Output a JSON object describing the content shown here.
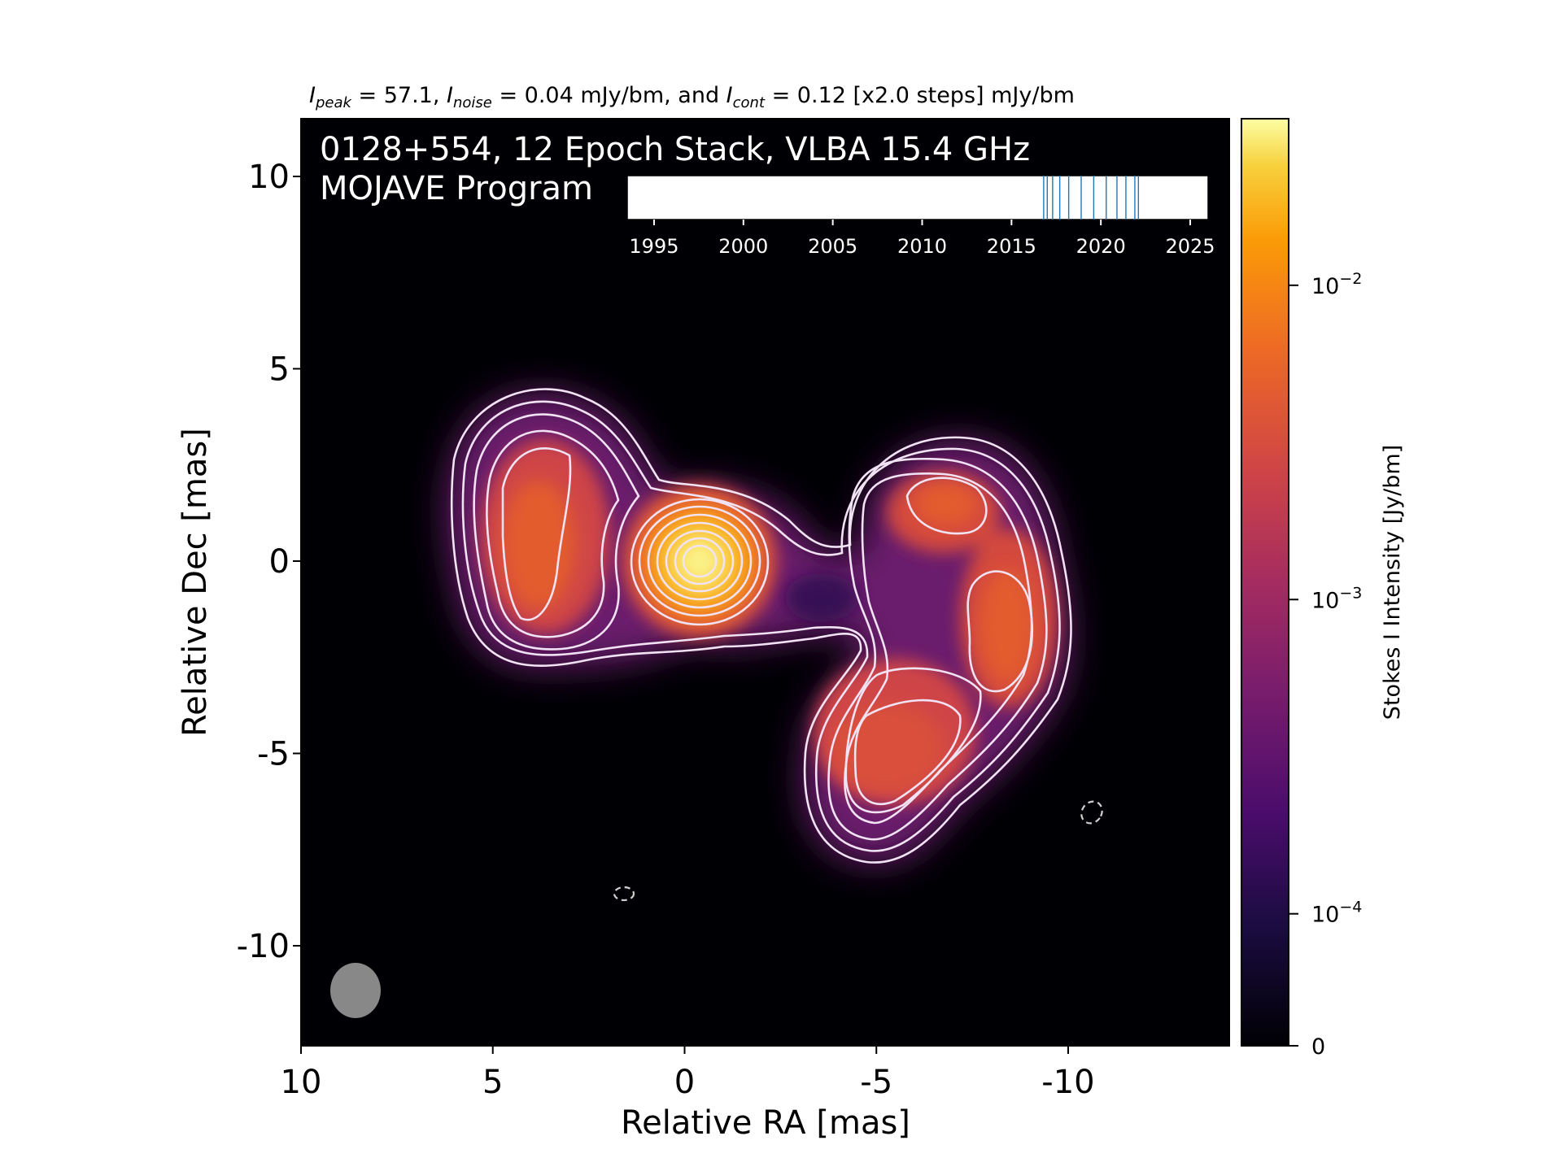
{
  "header": {
    "peak_sym": "I",
    "peak_sub": "peak",
    "peak_text": " = 57.1, ",
    "noise_sym": "I",
    "noise_sub": "noise",
    "noise_text": " = 0.04 mJy/bm, and ",
    "cont_sym": "I",
    "cont_sub": "cont",
    "cont_text": " = 0.12 [x2.0 steps] mJy/bm"
  },
  "map": {
    "title_line1": "0128+554, 12 Epoch Stack, VLBA 15.4 GHz",
    "title_line2": "MOJAVE Program",
    "beam_color": "#888888"
  },
  "chart_data": [
    {
      "type": "heatmap",
      "colormap": "inferno",
      "xlabel": "Relative RA [mas]",
      "ylabel": "Relative Dec [mas]",
      "xlim": [
        10,
        -14.2
      ],
      "ylim": [
        -12.6,
        11.5
      ],
      "xticks": [
        10,
        5,
        0,
        -5,
        -10
      ],
      "xtick_labels": [
        "10",
        "5",
        "0",
        "-5",
        "-10"
      ],
      "yticks": [
        10,
        5,
        0,
        -5,
        -10
      ],
      "ytick_labels": [
        "10",
        "5",
        "0",
        "-5",
        "-10"
      ],
      "contours": "white, levels 0.12 mJy/bm × 2^n",
      "components": [
        {
          "x": 0.0,
          "y": 0.0,
          "description": "core"
        },
        {
          "x": 4.2,
          "y": 0.3
        },
        {
          "x": -6.4,
          "y": 1.5
        },
        {
          "x": -7.8,
          "y": -2.0
        },
        {
          "x": -4.8,
          "y": -5.3
        }
      ]
    },
    {
      "type": "timeline",
      "xlim": [
        1993.5,
        2026
      ],
      "xticks": [
        1995,
        2000,
        2005,
        2010,
        2015,
        2020,
        2025
      ],
      "xtick_labels": [
        "1995",
        "2000",
        "2005",
        "2010",
        "2015",
        "2020",
        "2025"
      ],
      "epochs": [
        2016.8,
        2017.0,
        2017.3,
        2017.7,
        2018.2,
        2018.9,
        2019.6,
        2020.3,
        2020.9,
        2021.4,
        2021.9,
        2022.1
      ],
      "line_color": "#1f77b4"
    },
    {
      "type": "colorbar",
      "label": "Stokes I Intensity [Jy/bm]",
      "ticks": [
        {
          "label_base": "10",
          "label_exp": "−2",
          "value": 0.01
        },
        {
          "label_base": "10",
          "label_exp": "−3",
          "value": 0.001
        },
        {
          "label_base": "10",
          "label_exp": "−4",
          "value": 0.0001
        },
        {
          "label_base": "0",
          "label_exp": "",
          "value": 0
        }
      ]
    }
  ]
}
